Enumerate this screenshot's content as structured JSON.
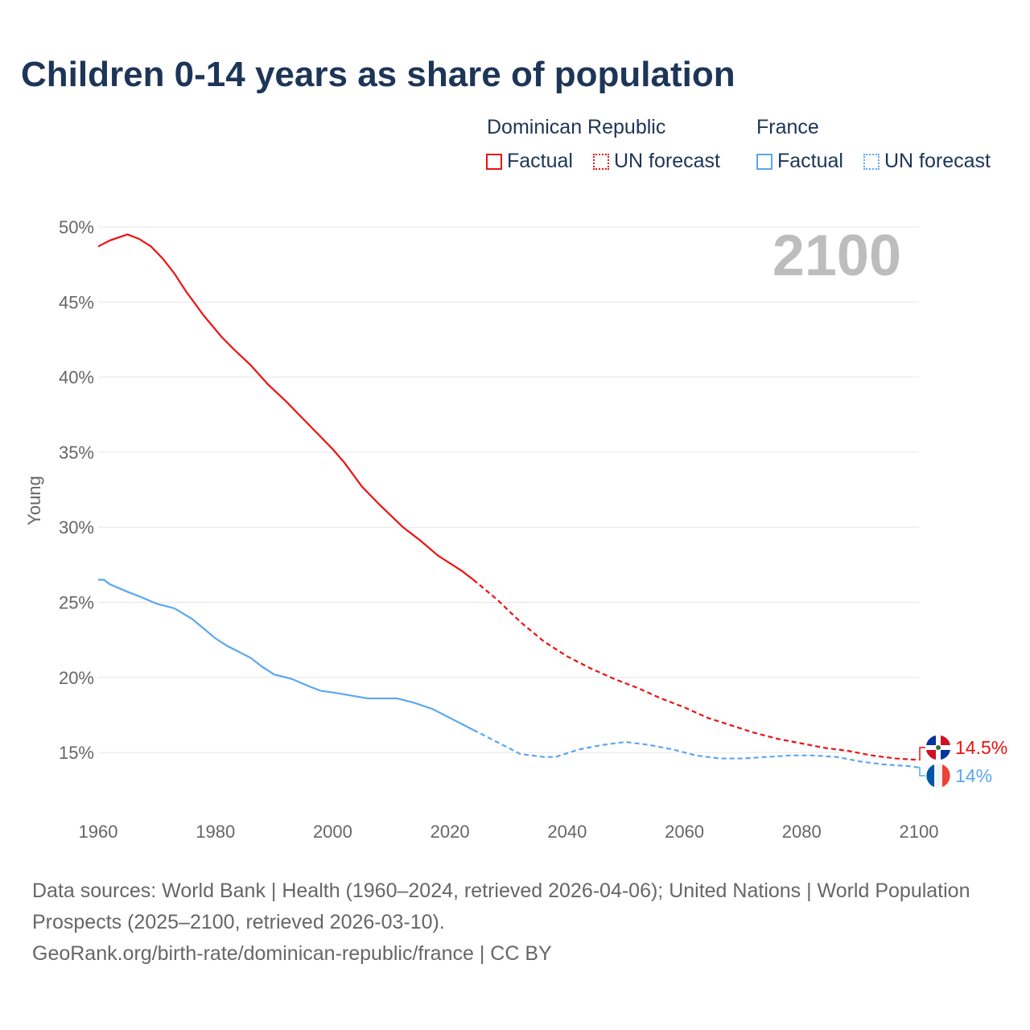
{
  "title": "Children 0-14 years as share of population",
  "legend": {
    "groups": [
      {
        "name": "Dominican Republic",
        "factual": "Factual",
        "forecast": "UN forecast",
        "color": "#ee1111"
      },
      {
        "name": "France",
        "factual": "Factual",
        "forecast": "UN forecast",
        "color": "#5ba7ee"
      }
    ]
  },
  "footer": {
    "line1": "Data sources: World Bank | Health (1960–2024, retrieved 2026-04-06); United Nations | World Population Prospects (2025–2100, retrieved 2026-03-10).",
    "line2": "GeoRank.org/birth-rate/dominican-republic/france | CC BY"
  },
  "chart_data": {
    "type": "line",
    "title": "Children 0-14 years as share of population",
    "ylabel": "Young",
    "xlabel": "",
    "year_display": "2100",
    "xlim": [
      1960,
      2100
    ],
    "ylim": [
      12.7,
      50
    ],
    "xticks": [
      1960,
      1980,
      2000,
      2020,
      2040,
      2060,
      2080,
      2100
    ],
    "yticks": [
      {
        "v": 50,
        "l": "50%"
      },
      {
        "v": 45,
        "l": "45%"
      },
      {
        "v": 40,
        "l": "40%"
      },
      {
        "v": 35,
        "l": "35%"
      },
      {
        "v": 30,
        "l": "30%"
      },
      {
        "v": 25,
        "l": "25%"
      },
      {
        "v": 20,
        "l": "20%"
      },
      {
        "v": 15,
        "l": "15%"
      }
    ],
    "forecast_start": 2024,
    "series": [
      {
        "name": "Dominican Republic",
        "color": "#ee1111",
        "end_label": "14.5%",
        "x": [
          1960,
          1962,
          1965,
          1967,
          1969,
          1971,
          1973,
          1975,
          1978,
          1981,
          1983,
          1986,
          1989,
          1992,
          1995,
          1997,
          2000,
          2002,
          2005,
          2008,
          2012,
          2015,
          2018,
          2020,
          2022,
          2024,
          2028,
          2032,
          2036,
          2040,
          2044,
          2048,
          2052,
          2056,
          2060,
          2064,
          2068,
          2072,
          2076,
          2080,
          2084,
          2088,
          2092,
          2096,
          2100
        ],
        "y": [
          48.7,
          49.1,
          49.5,
          49.2,
          48.7,
          47.9,
          46.9,
          45.7,
          44.1,
          42.7,
          41.9,
          40.8,
          39.5,
          38.4,
          37.2,
          36.4,
          35.2,
          34.3,
          32.7,
          31.5,
          30.0,
          29.1,
          28.1,
          27.6,
          27.1,
          26.5,
          25.2,
          23.7,
          22.4,
          21.4,
          20.6,
          19.9,
          19.3,
          18.6,
          18.0,
          17.3,
          16.8,
          16.3,
          15.9,
          15.6,
          15.3,
          15.1,
          14.8,
          14.6,
          14.5
        ]
      },
      {
        "name": "France",
        "color": "#5ba7ee",
        "end_label": "14%",
        "x": [
          1960,
          1961,
          1962,
          1965,
          1967,
          1970,
          1973,
          1976,
          1980,
          1982,
          1986,
          1988,
          1990,
          1993,
          1996,
          1998,
          2000,
          2003,
          2006,
          2008,
          2011,
          2014,
          2017,
          2020,
          2023,
          2024,
          2028,
          2032,
          2036,
          2038,
          2042,
          2046,
          2050,
          2054,
          2058,
          2062,
          2066,
          2070,
          2074,
          2078,
          2082,
          2086,
          2090,
          2094,
          2098,
          2100
        ],
        "y": [
          26.5,
          26.5,
          26.2,
          25.7,
          25.4,
          24.9,
          24.6,
          23.9,
          22.6,
          22.1,
          21.3,
          20.7,
          20.2,
          19.9,
          19.4,
          19.1,
          19.0,
          18.8,
          18.6,
          18.6,
          18.6,
          18.3,
          17.9,
          17.3,
          16.7,
          16.5,
          15.7,
          14.9,
          14.7,
          14.7,
          15.2,
          15.5,
          15.7,
          15.5,
          15.2,
          14.8,
          14.6,
          14.6,
          14.7,
          14.8,
          14.8,
          14.7,
          14.4,
          14.2,
          14.1,
          14.0
        ]
      }
    ]
  }
}
